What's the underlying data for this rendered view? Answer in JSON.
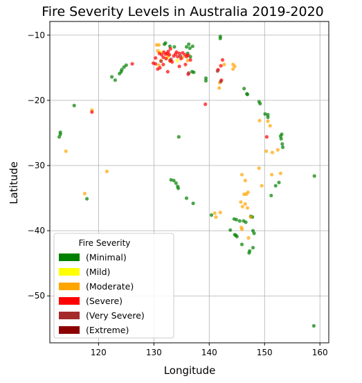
{
  "chart_data": {
    "type": "scatter",
    "title": "Fire Severity Levels in Australia 2019-2020",
    "xlabel": "Longitude",
    "ylabel": "Latitude",
    "xlim": [
      111.2,
      161.6
    ],
    "ylim": [
      -57.2,
      -7.9
    ],
    "xticks": [
      120,
      130,
      140,
      150,
      160
    ],
    "yticks": [
      -10,
      -20,
      -30,
      -40,
      -50
    ],
    "grid": true,
    "legend": {
      "title": "Fire Severity",
      "placement": "lower-left",
      "entries": [
        {
          "label": "(Minimal)",
          "color": "#008000"
        },
        {
          "label": "(Mild)",
          "color": "#ffff00"
        },
        {
          "label": "(Moderate)",
          "color": "#ffa500"
        },
        {
          "label": "(Severe)",
          "color": "#ff0000"
        },
        {
          "label": "(Very Severe)",
          "color": "#a52a2a"
        },
        {
          "label": "(Extreme)",
          "color": "#8b0000"
        }
      ]
    },
    "series": [
      {
        "name": "(Minimal)",
        "color": "#008000",
        "points": [
          [
            113.1,
            -24.9
          ],
          [
            113.1,
            -25.2
          ],
          [
            112.9,
            -25.6
          ],
          [
            115.6,
            -20.8
          ],
          [
            117.9,
            -35.1
          ],
          [
            122.4,
            -16.4
          ],
          [
            123.0,
            -16.9
          ],
          [
            123.8,
            -15.9
          ],
          [
            124.1,
            -15.6
          ],
          [
            124.2,
            -15.3
          ],
          [
            124.6,
            -14.9
          ],
          [
            125.0,
            -14.6
          ],
          [
            131.9,
            -11.4
          ],
          [
            132.1,
            -11.2
          ],
          [
            132.9,
            -11.7
          ],
          [
            133.7,
            -11.8
          ],
          [
            135.9,
            -11.8
          ],
          [
            136.3,
            -11.4
          ],
          [
            136.5,
            -12.0
          ],
          [
            137.0,
            -11.7
          ],
          [
            136.1,
            -12.8
          ],
          [
            136.6,
            -13.3
          ],
          [
            136.9,
            -15.6
          ],
          [
            137.2,
            -15.7
          ],
          [
            139.4,
            -16.6
          ],
          [
            139.4,
            -17.0
          ],
          [
            142.0,
            -10.2
          ],
          [
            142.0,
            -10.5
          ],
          [
            146.3,
            -18.2
          ],
          [
            146.8,
            -19.0
          ],
          [
            146.9,
            -19.1
          ],
          [
            149.0,
            -20.2
          ],
          [
            149.2,
            -20.5
          ],
          [
            150.1,
            -22.1
          ],
          [
            150.6,
            -22.2
          ],
          [
            150.6,
            -22.6
          ],
          [
            152.9,
            -25.5
          ],
          [
            153.1,
            -25.2
          ],
          [
            153.0,
            -25.9
          ],
          [
            153.2,
            -26.7
          ],
          [
            153.3,
            -27.2
          ],
          [
            152.6,
            -32.6
          ],
          [
            152.0,
            -33.1
          ],
          [
            151.2,
            -34.6
          ],
          [
            159.0,
            -31.6
          ],
          [
            158.9,
            -54.6
          ],
          [
            134.5,
            -25.6
          ],
          [
            133.1,
            -32.2
          ],
          [
            133.6,
            -32.3
          ],
          [
            134.0,
            -32.7
          ],
          [
            134.3,
            -33.2
          ],
          [
            134.4,
            -33.5
          ],
          [
            135.9,
            -35.0
          ],
          [
            137.1,
            -35.8
          ],
          [
            140.4,
            -37.6
          ],
          [
            143.8,
            -39.9
          ],
          [
            144.6,
            -40.6
          ],
          [
            144.8,
            -40.7
          ],
          [
            145.0,
            -40.9
          ],
          [
            144.5,
            -38.2
          ],
          [
            144.9,
            -38.3
          ],
          [
            145.5,
            -38.5
          ],
          [
            146.2,
            -38.5
          ],
          [
            146.6,
            -38.7
          ],
          [
            147.5,
            -37.8
          ],
          [
            147.8,
            -37.9
          ],
          [
            147.9,
            -40.0
          ],
          [
            148.1,
            -40.4
          ],
          [
            147.9,
            -42.6
          ],
          [
            147.3,
            -43.1
          ],
          [
            147.2,
            -43.4
          ],
          [
            145.9,
            -42.1
          ]
        ]
      },
      {
        "name": "(Mild)",
        "color": "#ffff00",
        "points": [
          [
            131.2,
            -12.6
          ],
          [
            132.4,
            -13.5
          ],
          [
            134.2,
            -13.9
          ]
        ]
      },
      {
        "name": "(Moderate)",
        "color": "#ffa500",
        "points": [
          [
            114.1,
            -27.8
          ],
          [
            118.8,
            -21.5
          ],
          [
            117.5,
            -34.3
          ],
          [
            121.5,
            -30.9
          ],
          [
            130.5,
            -11.5
          ],
          [
            130.9,
            -11.5
          ],
          [
            130.7,
            -12.4
          ],
          [
            131.3,
            -13.9
          ],
          [
            130.9,
            -14.6
          ],
          [
            132.6,
            -13.2
          ],
          [
            133.0,
            -14.0
          ],
          [
            135.2,
            -13.4
          ],
          [
            136.1,
            -13.9
          ],
          [
            141.9,
            -17.3
          ],
          [
            141.8,
            -18.1
          ],
          [
            142.7,
            -14.5
          ],
          [
            144.3,
            -14.5
          ],
          [
            144.6,
            -14.8
          ],
          [
            144.3,
            -15.2
          ],
          [
            149.1,
            -23.1
          ],
          [
            150.6,
            -23.2
          ],
          [
            151.0,
            -23.9
          ],
          [
            150.3,
            -27.8
          ],
          [
            151.4,
            -28.0
          ],
          [
            152.4,
            -27.6
          ],
          [
            152.9,
            -31.2
          ],
          [
            149.0,
            -30.4
          ],
          [
            149.5,
            -33.1
          ],
          [
            151.3,
            -31.4
          ],
          [
            145.9,
            -31.4
          ],
          [
            146.5,
            -32.3
          ],
          [
            147.0,
            -34.1
          ],
          [
            146.3,
            -34.4
          ],
          [
            146.7,
            -34.4
          ],
          [
            145.7,
            -35.6
          ],
          [
            146.5,
            -35.9
          ],
          [
            146.0,
            -36.3
          ],
          [
            146.9,
            -36.5
          ],
          [
            147.5,
            -37.9
          ],
          [
            147.1,
            -41.1
          ],
          [
            141.0,
            -37.3
          ],
          [
            141.2,
            -37.9
          ],
          [
            142.0,
            -37.2
          ],
          [
            145.8,
            -39.5
          ],
          [
            145.9,
            -39.8
          ]
        ]
      },
      {
        "name": "(Severe)",
        "color": "#ff0000",
        "points": [
          [
            129.9,
            -14.3
          ],
          [
            130.3,
            -14.4
          ],
          [
            130.7,
            -15.2
          ],
          [
            131.1,
            -15.0
          ],
          [
            131.0,
            -12.8
          ],
          [
            131.4,
            -13.0
          ],
          [
            131.7,
            -13.4
          ],
          [
            131.8,
            -12.6
          ],
          [
            132.1,
            -12.9
          ],
          [
            132.2,
            -13.6
          ],
          [
            132.4,
            -12.8
          ],
          [
            132.6,
            -12.5
          ],
          [
            132.8,
            -13.0
          ],
          [
            132.9,
            -13.9
          ],
          [
            133.3,
            -14.1
          ],
          [
            133.6,
            -13.2
          ],
          [
            133.9,
            -12.9
          ],
          [
            134.1,
            -12.6
          ],
          [
            134.3,
            -13.3
          ],
          [
            134.6,
            -12.8
          ],
          [
            134.9,
            -13.6
          ],
          [
            135.2,
            -12.7
          ],
          [
            135.6,
            -13.0
          ],
          [
            135.9,
            -13.3
          ],
          [
            136.2,
            -13.1
          ],
          [
            136.6,
            -13.8
          ],
          [
            135.7,
            -14.5
          ],
          [
            134.6,
            -14.8
          ],
          [
            132.5,
            -15.6
          ],
          [
            131.7,
            -14.5
          ],
          [
            130.3,
            -13.5
          ],
          [
            133.0,
            -12.1
          ],
          [
            126.1,
            -14.4
          ],
          [
            136.2,
            -16.0
          ],
          [
            139.3,
            -20.6
          ],
          [
            141.6,
            -15.3
          ],
          [
            142.1,
            -14.7
          ],
          [
            142.4,
            -13.8
          ],
          [
            142.2,
            -16.9
          ],
          [
            150.4,
            -25.6
          ],
          [
            118.8,
            -21.8
          ]
        ]
      },
      {
        "name": "(Very Severe)",
        "color": "#a52a2a",
        "points": [
          [
            131.3,
            -14.0
          ],
          [
            133.1,
            -13.7
          ],
          [
            134.8,
            -13.2
          ],
          [
            136.3,
            -15.8
          ],
          [
            141.5,
            -15.5
          ],
          [
            142.1,
            -17.1
          ]
        ]
      }
    ]
  }
}
